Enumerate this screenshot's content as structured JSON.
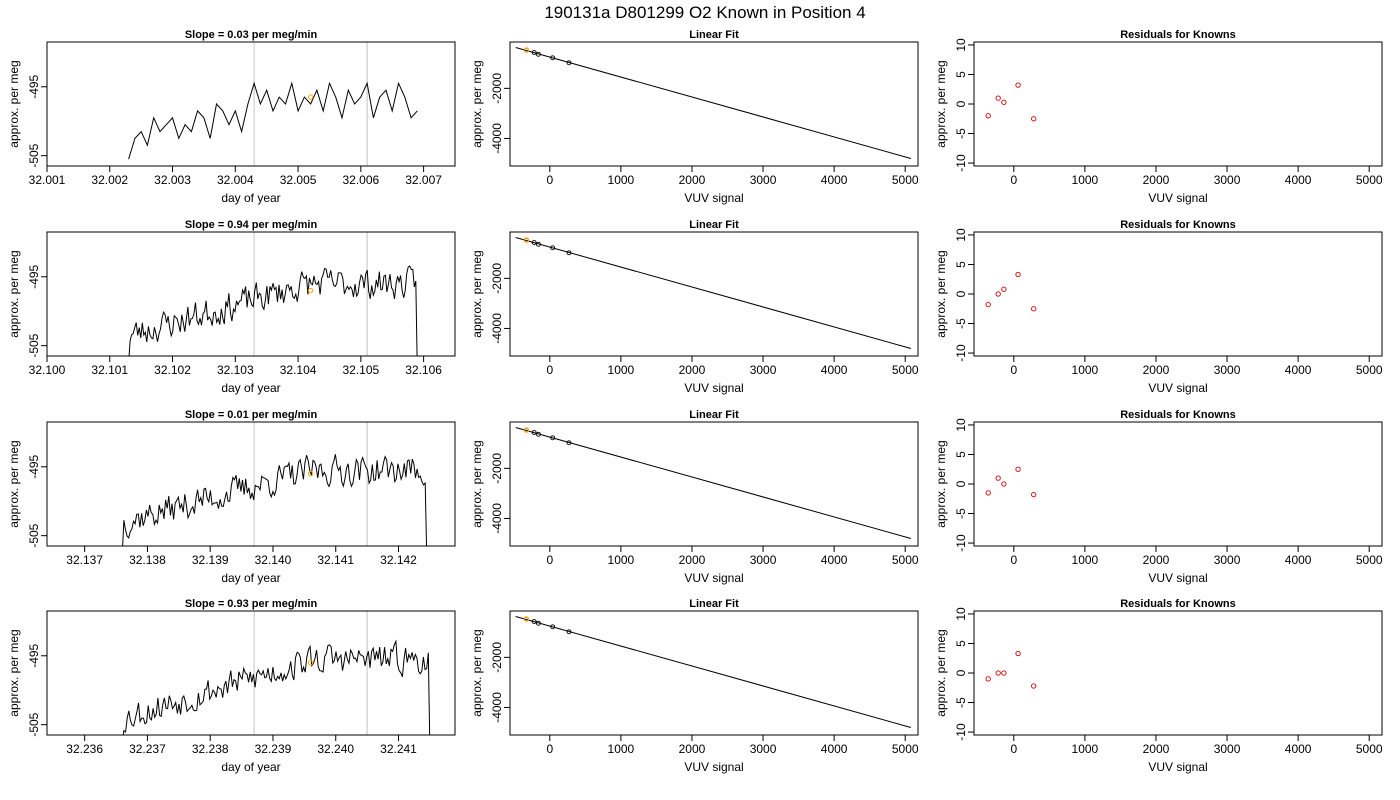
{
  "page_title": "190131a     D801299   O2 Known in Position  4",
  "chart_data": [
    {
      "type": "line",
      "title": "Slope =  0.03  per meg/min",
      "xlabel": "day of year",
      "ylabel": "approx. per meg",
      "xlim": [
        32.001,
        32.0075
      ],
      "ylim": [
        -506.5,
        -488.5
      ],
      "xticks": [
        32.001,
        32.002,
        32.003,
        32.004,
        32.005,
        32.006,
        32.007
      ],
      "xtick_labels": [
        "32.001",
        "32.002",
        "32.003",
        "32.004",
        "32.005",
        "32.006",
        "32.007"
      ],
      "yticks": [
        -505,
        -495
      ],
      "ytick_labels": [
        "-505",
        "-495"
      ],
      "vlines": [
        32.0043,
        32.0061
      ],
      "highlight_point": {
        "x": 32.0052,
        "y": -496.5
      },
      "trace_start": 32.0023,
      "trace_end": 32.00695,
      "trace_seed": 11,
      "trace_trend": [
        -504.5,
        -496.5
      ],
      "x": [
        32.0023,
        32.0024,
        32.0025,
        32.0026,
        32.0027,
        32.0028,
        32.0029,
        32.003,
        32.0031,
        32.0032,
        32.0033,
        32.0034,
        32.0035,
        32.0036,
        32.0037,
        32.0038,
        32.0039,
        32.004,
        32.0041,
        32.0042,
        32.0043,
        32.0044,
        32.0045,
        32.0046,
        32.0047,
        32.0048,
        32.0049,
        32.005,
        32.0051,
        32.0052,
        32.0053,
        32.0054,
        32.0055,
        32.0056,
        32.0057,
        32.0058,
        32.0059,
        32.006,
        32.0061,
        32.0062,
        32.0063,
        32.0064,
        32.0065,
        32.0066,
        32.0067,
        32.0068,
        32.0069
      ],
      "y": [
        -505.5,
        -502.5,
        -501.5,
        -503.5,
        -499.5,
        -501.5,
        -500.5,
        -499.5,
        -502.5,
        -500.5,
        -501.5,
        -498.5,
        -499.5,
        -502.5,
        -497.5,
        -498.5,
        -500.5,
        -498.5,
        -501.5,
        -497.5,
        -494.5,
        -497.5,
        -495.5,
        -498.5,
        -496.5,
        -497.5,
        -494.5,
        -498.5,
        -496.5,
        -497.5,
        -495.5,
        -498.5,
        -494.5,
        -496.5,
        -499.5,
        -495.5,
        -497.5,
        -496.5,
        -494.5,
        -499.5,
        -496.5,
        -495.5,
        -498.5,
        -494.5,
        -496.5,
        -499.5,
        -498.5
      ]
    },
    {
      "type": "line",
      "title": "Linear Fit",
      "xlabel": "VUV signal",
      "ylabel": "approx. per meg",
      "xlim": [
        -560,
        5180
      ],
      "ylim": [
        -5100,
        -150
      ],
      "xticks": [
        0,
        1000,
        2000,
        3000,
        4000,
        5000
      ],
      "xtick_labels": [
        "0",
        "1000",
        "2000",
        "3000",
        "4000",
        "5000"
      ],
      "yticks": [
        -4000,
        -2000
      ],
      "ytick_labels": [
        "-4000",
        "-2000"
      ],
      "line": {
        "x": [
          -480,
          5080
        ],
        "y": [
          -370,
          -4800
        ]
      },
      "points": {
        "x": [
          -330,
          -220,
          -160,
          40,
          270
        ],
        "y": [
          -470,
          -570,
          -640,
          -780,
          -980
        ]
      },
      "highlight_point": {
        "x": -330,
        "y": -470
      }
    },
    {
      "type": "scatter",
      "title": "Residuals for Knowns",
      "xlabel": "VUV signal",
      "ylabel": "approx. per meg",
      "xlim": [
        -560,
        5180
      ],
      "ylim": [
        -10.5,
        10.5
      ],
      "xticks": [
        0,
        1000,
        2000,
        3000,
        4000,
        5000
      ],
      "xtick_labels": [
        "0",
        "1000",
        "2000",
        "3000",
        "4000",
        "5000"
      ],
      "yticks": [
        -10,
        -5,
        0,
        5,
        10
      ],
      "ytick_labels": [
        "-10",
        "-5",
        "0",
        "5",
        "10"
      ],
      "points": {
        "x": [
          -360,
          -220,
          -140,
          60,
          280
        ],
        "y": [
          -2,
          1,
          0.3,
          3.2,
          -2.5
        ]
      }
    },
    {
      "type": "line",
      "title": "Slope =  0.94  per meg/min",
      "xlabel": "day of year",
      "ylabel": "approx. per meg",
      "xlim": [
        32.1,
        32.1065
      ],
      "ylim": [
        -506.5,
        -488.5
      ],
      "xticks": [
        32.1,
        32.101,
        32.102,
        32.103,
        32.104,
        32.105,
        32.106
      ],
      "xtick_labels": [
        "32.100",
        "32.101",
        "32.102",
        "32.103",
        "32.104",
        "32.105",
        "32.106"
      ],
      "yticks": [
        -505,
        -495
      ],
      "ytick_labels": [
        "-505",
        "-495"
      ],
      "vlines": [
        32.1033,
        32.1051
      ],
      "highlight_point": {
        "x": 32.1042,
        "y": -497
      },
      "trace_start": 32.1013,
      "trace_end": 32.1059,
      "trace_seed": 23,
      "trace_trend": [
        -503.5,
        -496
      ]
    },
    {
      "type": "line",
      "title": "Linear Fit",
      "xlabel": "VUV signal",
      "ylabel": "approx. per meg",
      "xlim": [
        -560,
        5180
      ],
      "ylim": [
        -5100,
        -150
      ],
      "xticks": [
        0,
        1000,
        2000,
        3000,
        4000,
        5000
      ],
      "xtick_labels": [
        "0",
        "1000",
        "2000",
        "3000",
        "4000",
        "5000"
      ],
      "yticks": [
        -4000,
        -2000
      ],
      "ytick_labels": [
        "-4000",
        "-2000"
      ],
      "line": {
        "x": [
          -480,
          5080
        ],
        "y": [
          -370,
          -4800
        ]
      },
      "points": {
        "x": [
          -330,
          -220,
          -160,
          40,
          270
        ],
        "y": [
          -470,
          -570,
          -640,
          -780,
          -980
        ]
      },
      "highlight_point": {
        "x": -330,
        "y": -470
      }
    },
    {
      "type": "scatter",
      "title": "Residuals for Knowns",
      "xlabel": "VUV signal",
      "ylabel": "approx. per meg",
      "xlim": [
        -560,
        5180
      ],
      "ylim": [
        -10.5,
        10.5
      ],
      "xticks": [
        0,
        1000,
        2000,
        3000,
        4000,
        5000
      ],
      "xtick_labels": [
        "0",
        "1000",
        "2000",
        "3000",
        "4000",
        "5000"
      ],
      "yticks": [
        -10,
        -5,
        0,
        5,
        10
      ],
      "ytick_labels": [
        "-10",
        "-5",
        "0",
        "5",
        "10"
      ],
      "points": {
        "x": [
          -360,
          -220,
          -140,
          60,
          280
        ],
        "y": [
          -1.8,
          0,
          0.8,
          3.3,
          -2.5
        ]
      }
    },
    {
      "type": "line",
      "title": "Slope =  0.01  per meg/min",
      "xlabel": "day of year",
      "ylabel": "approx. per meg",
      "xlim": [
        32.1364,
        32.1429
      ],
      "ylim": [
        -506.5,
        -488.5
      ],
      "xticks": [
        32.137,
        32.138,
        32.139,
        32.14,
        32.141,
        32.142
      ],
      "xtick_labels": [
        "32.137",
        "32.138",
        "32.139",
        "32.140",
        "32.141",
        "32.142"
      ],
      "yticks": [
        -505,
        -495
      ],
      "ytick_labels": [
        "-505",
        "-495"
      ],
      "vlines": [
        32.1397,
        32.1415
      ],
      "highlight_point": {
        "x": 32.1406,
        "y": -496
      },
      "trace_start": 32.1376,
      "trace_end": 32.14245,
      "trace_seed": 37,
      "trace_trend": [
        -503,
        -495.5
      ]
    },
    {
      "type": "line",
      "title": "Linear Fit",
      "xlabel": "VUV signal",
      "ylabel": "approx. per meg",
      "xlim": [
        -560,
        5180
      ],
      "ylim": [
        -5100,
        -150
      ],
      "xticks": [
        0,
        1000,
        2000,
        3000,
        4000,
        5000
      ],
      "xtick_labels": [
        "0",
        "1000",
        "2000",
        "3000",
        "4000",
        "5000"
      ],
      "yticks": [
        -4000,
        -2000
      ],
      "ytick_labels": [
        "-4000",
        "-2000"
      ],
      "line": {
        "x": [
          -480,
          5080
        ],
        "y": [
          -370,
          -4800
        ]
      },
      "points": {
        "x": [
          -330,
          -220,
          -160,
          40,
          270
        ],
        "y": [
          -470,
          -570,
          -640,
          -780,
          -980
        ]
      },
      "highlight_point": {
        "x": -330,
        "y": -470
      }
    },
    {
      "type": "scatter",
      "title": "Residuals for Knowns",
      "xlabel": "VUV signal",
      "ylabel": "approx. per meg",
      "xlim": [
        -560,
        5180
      ],
      "ylim": [
        -10.5,
        10.5
      ],
      "xticks": [
        0,
        1000,
        2000,
        3000,
        4000,
        5000
      ],
      "xtick_labels": [
        "0",
        "1000",
        "2000",
        "3000",
        "4000",
        "5000"
      ],
      "yticks": [
        -10,
        -5,
        0,
        5,
        10
      ],
      "ytick_labels": [
        "-10",
        "-5",
        "0",
        "5",
        "10"
      ],
      "points": {
        "x": [
          -360,
          -220,
          -140,
          60,
          280
        ],
        "y": [
          -1.5,
          1,
          0,
          2.5,
          -1.8
        ]
      }
    },
    {
      "type": "line",
      "title": "Slope =  0.93  per meg/min",
      "xlabel": "day of year",
      "ylabel": "approx. per meg",
      "xlim": [
        32.2354,
        32.2419
      ],
      "ylim": [
        -506.5,
        -488.5
      ],
      "xticks": [
        32.236,
        32.237,
        32.238,
        32.239,
        32.24,
        32.241
      ],
      "xtick_labels": [
        "32.236",
        "32.237",
        "32.238",
        "32.239",
        "32.240",
        "32.241"
      ],
      "yticks": [
        -505,
        -495
      ],
      "ytick_labels": [
        "-505",
        "-495"
      ],
      "vlines": [
        32.2387,
        32.2405
      ],
      "highlight_point": {
        "x": 32.2396,
        "y": -496
      },
      "trace_start": 32.2366,
      "trace_end": 32.2415,
      "trace_seed": 53,
      "trace_trend": [
        -504,
        -495.5
      ]
    },
    {
      "type": "line",
      "title": "Linear Fit",
      "xlabel": "VUV signal",
      "ylabel": "approx. per meg",
      "xlim": [
        -560,
        5180
      ],
      "ylim": [
        -5100,
        -150
      ],
      "xticks": [
        0,
        1000,
        2000,
        3000,
        4000,
        5000
      ],
      "xtick_labels": [
        "0",
        "1000",
        "2000",
        "3000",
        "4000",
        "5000"
      ],
      "yticks": [
        -4000,
        -2000
      ],
      "ytick_labels": [
        "-4000",
        "-2000"
      ],
      "line": {
        "x": [
          -480,
          5080
        ],
        "y": [
          -370,
          -4800
        ]
      },
      "points": {
        "x": [
          -330,
          -220,
          -160,
          40,
          270
        ],
        "y": [
          -470,
          -570,
          -640,
          -780,
          -980
        ]
      },
      "highlight_point": {
        "x": -330,
        "y": -470
      }
    },
    {
      "type": "scatter",
      "title": "Residuals for Knowns",
      "xlabel": "VUV signal",
      "ylabel": "approx. per meg",
      "xlim": [
        -560,
        5180
      ],
      "ylim": [
        -10.5,
        10.5
      ],
      "xticks": [
        0,
        1000,
        2000,
        3000,
        4000,
        5000
      ],
      "xtick_labels": [
        "0",
        "1000",
        "2000",
        "3000",
        "4000",
        "5000"
      ],
      "yticks": [
        -10,
        -5,
        0,
        5,
        10
      ],
      "ytick_labels": [
        "-10",
        "-5",
        "0",
        "5",
        "10"
      ],
      "points": {
        "x": [
          -360,
          -220,
          -140,
          60,
          280
        ],
        "y": [
          -1,
          0,
          0,
          3.3,
          -2.2
        ]
      }
    }
  ],
  "colors": {
    "trace": "#000000",
    "vline": "#cccccc",
    "highlight": "#ffa500",
    "residual": "#cc0000",
    "axis": "#000000"
  }
}
